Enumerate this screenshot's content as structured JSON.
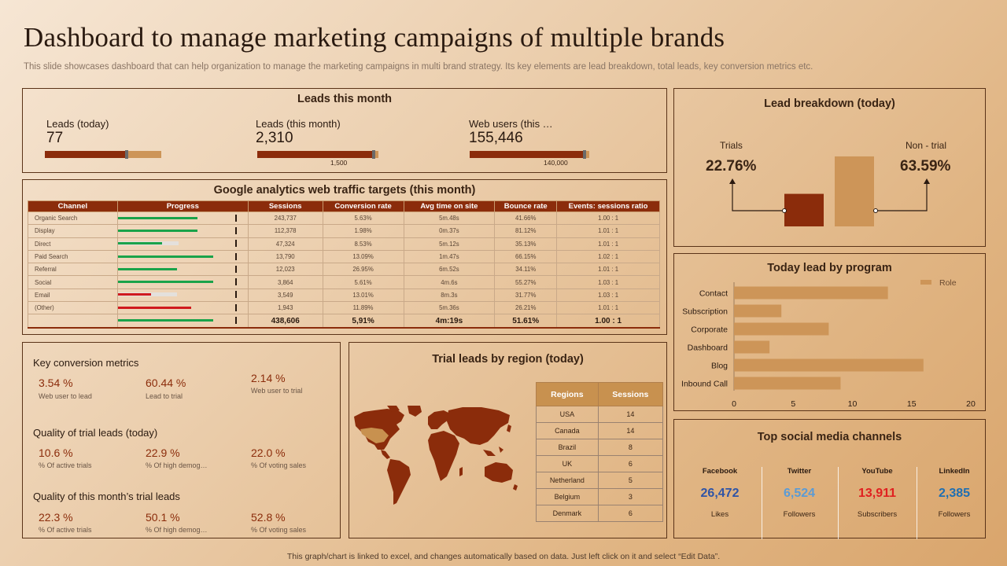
{
  "title": "Dashboard to manage marketing campaigns of multiple brands",
  "subtitle": "This slide showcases dashboard that can help organization to manage the marketing campaigns in multi brand strategy. Its key elements are lead breakdown, total leads, key conversion metrics etc.",
  "footer": "This graph/chart is linked to excel, and changes automatically based on data. Just left click on it and select “Edit Data”.",
  "leads": {
    "title": "Leads this month",
    "items": [
      {
        "label": "Leads (today)",
        "value": "77",
        "target": "",
        "fill": 0.7
      },
      {
        "label": "Leads (this  month)",
        "value": "2,310",
        "target": "1,500",
        "fill": 0.96
      },
      {
        "label": "Web users (this …",
        "value": "155,446",
        "target": "140,000",
        "fill": 0.96
      }
    ]
  },
  "ga": {
    "title": "Google analytics web traffic targets (this month)",
    "headers": [
      "Channel",
      "Progress",
      "Sessions",
      "Conversion rate",
      "Avg time on site",
      "Bounce rate",
      "Events: sessions ratio"
    ],
    "rows": [
      {
        "channel": "Organic Search",
        "sessions": "243,737",
        "conv": "5.63%",
        "avg": "5m.48s",
        "bounce": "41.66%",
        "ratio": "1.00 : 1",
        "progress": 0.62,
        "color": "#1aa34a",
        "gray": 0
      },
      {
        "channel": "Display",
        "sessions": "112,378",
        "conv": "1.98%",
        "avg": "0m.37s",
        "bounce": "81.12%",
        "ratio": "1.01 : 1",
        "progress": 0.62,
        "color": "#1aa34a",
        "gray": 0
      },
      {
        "channel": "Direct",
        "sessions": "47,324",
        "conv": "8.53%",
        "avg": "5m.12s",
        "bounce": "35.13%",
        "ratio": "1.01 : 1",
        "progress": 0.34,
        "color": "#1aa34a",
        "gray": 0.47
      },
      {
        "channel": "Paid Search",
        "sessions": "13,790",
        "conv": "13.09%",
        "avg": "1m.47s",
        "bounce": "66.15%",
        "ratio": "1.02 : 1",
        "progress": 0.74,
        "color": "#1aa34a",
        "gray": 0
      },
      {
        "channel": "Referral",
        "sessions": "12,023",
        "conv": "26.95%",
        "avg": "6m.52s",
        "bounce": "34.11%",
        "ratio": "1.01 : 1",
        "progress": 0.46,
        "color": "#1aa34a",
        "gray": 0
      },
      {
        "channel": "Social",
        "sessions": "3,864",
        "conv": "5.61%",
        "avg": "4m.6s",
        "bounce": "55.27%",
        "ratio": "1.03 : 1",
        "progress": 0.74,
        "color": "#1aa34a",
        "gray": 0
      },
      {
        "channel": "Email",
        "sessions": "3,549",
        "conv": "13.01%",
        "avg": "8m.3s",
        "bounce": "31.77%",
        "ratio": "1.03 : 1",
        "progress": 0.26,
        "color": "#d0191d",
        "gray": 0.46
      },
      {
        "channel": "(Other)",
        "sessions": "1,943",
        "conv": "11.89%",
        "avg": "5m.36s",
        "bounce": "26.21%",
        "ratio": "1.01 : 1",
        "progress": 0.57,
        "color": "#d0191d",
        "gray": 0
      }
    ],
    "total": {
      "sessions": "438,606",
      "conv": "5,91%",
      "avg": "4m:19s",
      "bounce": "51.61%",
      "ratio": "1.00 : 1",
      "progress": 0.74,
      "color": "#1aa34a"
    }
  },
  "key_metrics": {
    "sections": [
      {
        "title": "Key conversion metrics",
        "items": [
          {
            "value": "3.54 %",
            "label": "Web user to lead"
          },
          {
            "value": "60.44 %",
            "label": "Lead to trial"
          },
          {
            "value": "2.14 %",
            "label": "Web user to trial"
          }
        ]
      },
      {
        "title": "Quality of trial leads (today)",
        "items": [
          {
            "value": "10.6 %",
            "label": "% Of active trials"
          },
          {
            "value": "22.9 %",
            "label": "% Of high demog…"
          },
          {
            "value": "22.0 %",
            "label": "% Of voting sales"
          }
        ]
      },
      {
        "title": "Quality of this month’s trial leads",
        "items": [
          {
            "value": "22.3 %",
            "label": "% Of active trials"
          },
          {
            "value": "50.1 %",
            "label": "% Of high demog…"
          },
          {
            "value": "52.8 %",
            "label": "% Of voting sales"
          }
        ]
      }
    ]
  },
  "regions": {
    "title": "Trial leads by region (today)",
    "headers": [
      "Regions",
      "Sessions"
    ],
    "rows": [
      {
        "region": "USA",
        "sessions": "14"
      },
      {
        "region": "Canada",
        "sessions": "14"
      },
      {
        "region": "Brazil",
        "sessions": "8"
      },
      {
        "region": "UK",
        "sessions": "6"
      },
      {
        "region": "Netherland",
        "sessions": "5"
      },
      {
        "region": "Belgium",
        "sessions": "3"
      },
      {
        "region": "Denmark",
        "sessions": "6"
      }
    ]
  },
  "breakdown": {
    "title": "Lead breakdown (today)",
    "trials_label": "Trials",
    "trials_value": "22.76%",
    "nontrial_label": "Non - trial",
    "nontrial_value": "63.59%",
    "trials_pct": 22.76,
    "nontrial_pct": 63.59,
    "trials_color": "#8b2c0b",
    "nontrial_color": "#cd9558"
  },
  "social": {
    "title": "Top social media channels",
    "channels": [
      {
        "name": "Facebook",
        "value": "26,472",
        "unit": "Likes",
        "color": "#2f54a6"
      },
      {
        "name": "Twitter",
        "value": "6,524",
        "unit": "Followers",
        "color": "#5b9bd5"
      },
      {
        "name": "YouTube",
        "value": "13,911",
        "unit": "Subscribers",
        "color": "#e02020"
      },
      {
        "name": "LinkedIn",
        "value": "2,385",
        "unit": "Followers",
        "color": "#1f6fb2"
      }
    ]
  },
  "chart_data": {
    "type": "bar",
    "orientation": "horizontal",
    "title": "Today lead by program",
    "categories": [
      "Contact",
      "Subscription",
      "Corporate",
      "Dashboard",
      "Blog",
      "Inbound Call"
    ],
    "series": [
      {
        "name": "Role",
        "values": [
          13,
          4,
          8,
          3,
          16,
          9
        ]
      }
    ],
    "xlim": [
      0,
      20
    ],
    "xticks": [
      "0",
      "5",
      "10",
      "15",
      "20"
    ],
    "legend": "top-right",
    "grid": false,
    "bar_color": "#cd9558"
  }
}
